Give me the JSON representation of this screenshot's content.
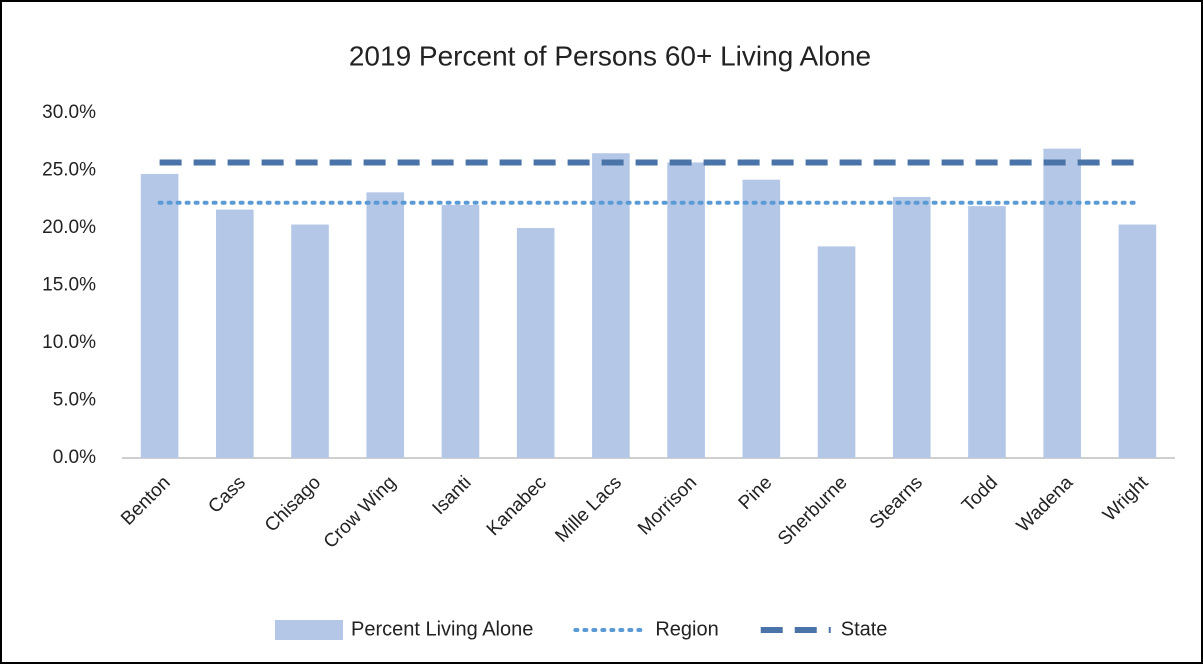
{
  "chart_data": {
    "type": "combo",
    "title": "2019 Percent of Persons 60+ Living Alone",
    "categories": [
      "Benton",
      "Cass",
      "Chisago",
      "Crow Wing",
      "Isanti",
      "Kanabec",
      "Mille Lacs",
      "Morrison",
      "Pine",
      "Sherburne",
      "Stearns",
      "Todd",
      "Wadena",
      "Wright"
    ],
    "series": [
      {
        "name": "Percent Living Alone",
        "type": "bar",
        "color": "#b4c7e7",
        "values": [
          24.7,
          21.6,
          20.3,
          23.1,
          22.0,
          20.0,
          26.5,
          25.7,
          24.2,
          18.4,
          22.7,
          21.9,
          26.9,
          20.3
        ]
      },
      {
        "name": "Region",
        "type": "line",
        "style": "dotted",
        "color": "#5b9bd5",
        "values": [
          22.2,
          22.2,
          22.2,
          22.2,
          22.2,
          22.2,
          22.2,
          22.2,
          22.2,
          22.2,
          22.2,
          22.2,
          22.2,
          22.2
        ]
      },
      {
        "name": "State",
        "type": "line",
        "style": "dashed",
        "color": "#4a74a8",
        "values": [
          25.7,
          25.7,
          25.7,
          25.7,
          25.7,
          25.7,
          25.7,
          25.7,
          25.7,
          25.7,
          25.7,
          25.7,
          25.7,
          25.7
        ]
      }
    ],
    "ylim": [
      0,
      30
    ],
    "yticks": [
      {
        "value": 0,
        "label": "0.0%"
      },
      {
        "value": 5,
        "label": "5.0%"
      },
      {
        "value": 10,
        "label": "10.0%"
      },
      {
        "value": 15,
        "label": "15.0%"
      },
      {
        "value": 20,
        "label": "20.0%"
      },
      {
        "value": 25,
        "label": "25.0%"
      },
      {
        "value": 30,
        "label": "30.0%"
      }
    ],
    "grid": false,
    "legend": "bottom"
  }
}
